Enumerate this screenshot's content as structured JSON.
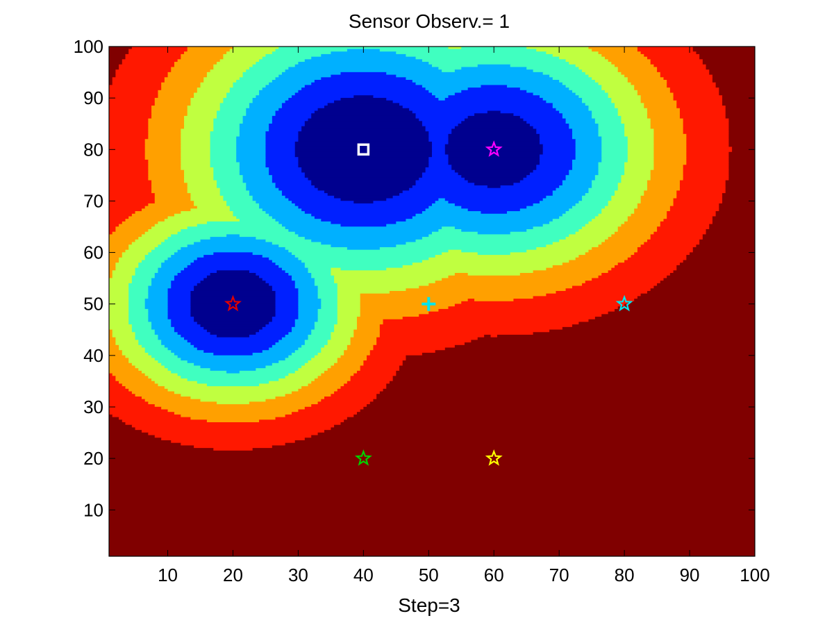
{
  "chart_data": {
    "type": "contour",
    "title": "Sensor  Observ.= 1",
    "xlabel": "Step=3",
    "ylabel": "",
    "xlim": [
      1,
      100
    ],
    "ylim": [
      1,
      100
    ],
    "xticks": [
      10,
      20,
      30,
      40,
      50,
      60,
      70,
      80,
      90,
      100
    ],
    "yticks": [
      10,
      20,
      30,
      40,
      50,
      60,
      70,
      80,
      90,
      100
    ],
    "grid": false,
    "legend": "none",
    "colormap": "jet",
    "levels": 8,
    "level_colors": [
      "#00008f",
      "#0020ff",
      "#00b0ff",
      "#40ffc0",
      "#c0ff40",
      "#ffa000",
      "#ff1800",
      "#800000"
    ],
    "field_sources": [
      {
        "x": 20,
        "y": 50,
        "sigma": 14,
        "weight": 0.98
      },
      {
        "x": 40,
        "y": 80,
        "sigma": 20,
        "weight": 1.0
      },
      {
        "x": 60,
        "y": 80,
        "sigma": 18,
        "weight": 0.95
      },
      {
        "x": 45,
        "y": 65,
        "sigma": 10,
        "weight": 0.55
      }
    ],
    "markers": [
      {
        "name": "",
        "shape": "square",
        "x": 40,
        "y": 80,
        "color": "#ffffff"
      },
      {
        "name": "",
        "shape": "star",
        "x": 60,
        "y": 80,
        "color": "#ff00ff"
      },
      {
        "name": "",
        "shape": "star",
        "x": 20,
        "y": 50,
        "color": "#e00000"
      },
      {
        "name": "",
        "shape": "plus",
        "x": 50,
        "y": 50,
        "color": "#00e5ee"
      },
      {
        "name": "",
        "shape": "star",
        "x": 80,
        "y": 50,
        "color": "#00e5ee"
      },
      {
        "name": "",
        "shape": "star",
        "x": 40,
        "y": 20,
        "color": "#00d000"
      },
      {
        "name": "",
        "shape": "star",
        "x": 60,
        "y": 20,
        "color": "#ffff00"
      }
    ]
  }
}
